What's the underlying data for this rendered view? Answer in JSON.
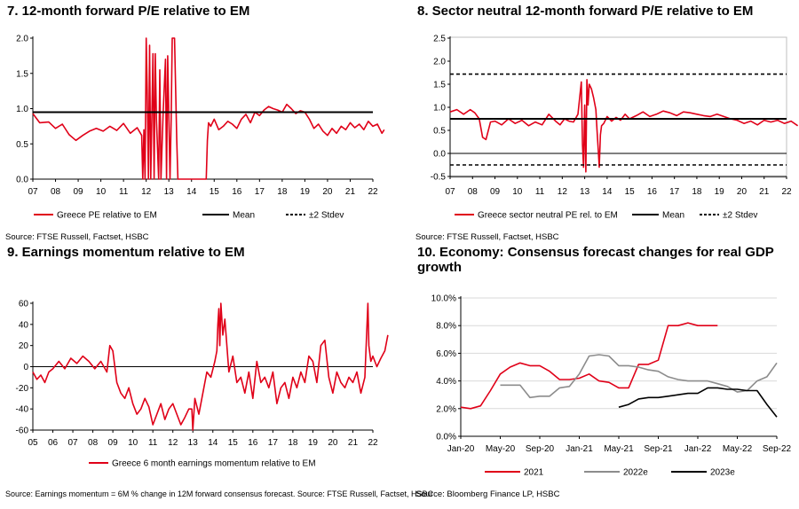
{
  "colors": {
    "red": "#e00018",
    "black": "#000000",
    "grey": "#8c8c8c",
    "grid": "#d9d9d9"
  },
  "panels": [
    {
      "title": "7. 12-month forward P/E relative to EM",
      "source": "Source: FTSE Russell, Factset, HSBC"
    },
    {
      "title": "8. Sector neutral 12-month forward P/E relative to EM",
      "source": "Source: FTSE Russell, Factset, HSBC"
    },
    {
      "title": "9. Earnings momentum relative to EM",
      "source": "Source: Earnings momentum = 6M % change in 12M forward consensus forecast. Source: FTSE Russell, Factset, HSBC"
    },
    {
      "title": "10. Economy: Consensus forecast changes for real GDP growth",
      "source": "Source: Bloomberg Finance LP, HSBC"
    }
  ],
  "chart_data": [
    {
      "type": "line",
      "title": "7. 12-month forward P/E relative to EM",
      "x_ticks": [
        "07",
        "08",
        "09",
        "10",
        "11",
        "12",
        "13",
        "14",
        "15",
        "16",
        "17",
        "18",
        "19",
        "20",
        "21",
        "22"
      ],
      "x_range": [
        2007,
        2022
      ],
      "y_ticks": [
        "0.0",
        "0.5",
        "1.0",
        "1.5",
        "2.0"
      ],
      "ylim": [
        0,
        2.0
      ],
      "series": [
        {
          "name": "Greece PE relative to EM",
          "style": "red",
          "x": [
            2007,
            2007.3,
            2007.7,
            2008,
            2008.3,
            2008.6,
            2008.9,
            2009.2,
            2009.5,
            2009.8,
            2010.1,
            2010.4,
            2010.7,
            2011.0,
            2011.3,
            2011.6,
            2011.8,
            2011.85,
            2011.9,
            2011.95,
            2012.0,
            2012.05,
            2012.1,
            2012.15,
            2012.2,
            2012.3,
            2012.35,
            2012.4,
            2012.45,
            2012.55,
            2012.6,
            2012.65,
            2012.75,
            2012.85,
            2012.9,
            2012.95,
            2013.05,
            2013.1,
            2013.15,
            2013.25,
            2013.35,
            2013.4,
            2013.5,
            2013.6,
            2013.7,
            2013.8,
            2013.9,
            2014.0,
            2014.2,
            2014.5,
            2014.65,
            2014.7,
            2014.75,
            2014.85,
            2015.0,
            2015.2,
            2015.4,
            2015.6,
            2015.8,
            2016.0,
            2016.2,
            2016.4,
            2016.6,
            2016.8,
            2017.0,
            2017.2,
            2017.4,
            2017.6,
            2017.8,
            2018.0,
            2018.2,
            2018.4,
            2018.6,
            2018.8,
            2019.0,
            2019.2,
            2019.4,
            2019.6,
            2019.8,
            2020.0,
            2020.2,
            2020.4,
            2020.6,
            2020.8,
            2021.0,
            2021.2,
            2021.4,
            2021.6,
            2021.8,
            2022.0,
            2022.2,
            2022.4,
            2022.5
          ],
          "y": [
            0.93,
            0.8,
            0.81,
            0.72,
            0.78,
            0.63,
            0.55,
            0.62,
            0.68,
            0.72,
            0.68,
            0.75,
            0.69,
            0.79,
            0.65,
            0.73,
            0.62,
            0.0,
            0.7,
            0.0,
            2.0,
            1.2,
            0.0,
            1.9,
            0.0,
            1.78,
            0.0,
            1.78,
            0.85,
            0.0,
            1.55,
            0.0,
            0.95,
            1.7,
            0.0,
            1.75,
            0.0,
            0.85,
            2.0,
            2.0,
            0.55,
            0.0,
            0.0,
            0.0,
            0.0,
            0.0,
            0.0,
            0.0,
            0.0,
            0.0,
            0.0,
            0.55,
            0.8,
            0.75,
            0.85,
            0.7,
            0.75,
            0.82,
            0.78,
            0.72,
            0.85,
            0.92,
            0.8,
            0.95,
            0.9,
            0.98,
            1.03,
            1.0,
            0.98,
            0.95,
            1.06,
            1.0,
            0.93,
            0.97,
            0.95,
            0.85,
            0.72,
            0.78,
            0.68,
            0.62,
            0.72,
            0.65,
            0.75,
            0.7,
            0.8,
            0.73,
            0.78,
            0.7,
            0.82,
            0.75,
            0.78,
            0.65,
            0.7
          ]
        },
        {
          "name": "Mean",
          "style": "black",
          "constant": 0.95
        },
        {
          "name": "±2 Stdev",
          "style": "dashed",
          "constant": null
        }
      ]
    },
    {
      "type": "line",
      "title": "8. Sector neutral 12-month forward P/E relative to EM",
      "x_ticks": [
        "07",
        "08",
        "09",
        "10",
        "11",
        "12",
        "13",
        "14",
        "15",
        "16",
        "17",
        "18",
        "19",
        "20",
        "21",
        "22"
      ],
      "x_range": [
        2007,
        2022
      ],
      "y_ticks": [
        "-0.5",
        "0.0",
        "0.5",
        "1.0",
        "1.5",
        "2.0",
        "2.5"
      ],
      "ylim": [
        -0.5,
        2.5
      ],
      "series": [
        {
          "name": "Greece sector neutral PE rel. to EM",
          "style": "red",
          "x": [
            2007,
            2007.3,
            2007.6,
            2007.9,
            2008.1,
            2008.3,
            2008.45,
            2008.6,
            2008.8,
            2009.0,
            2009.3,
            2009.6,
            2009.9,
            2010.2,
            2010.5,
            2010.8,
            2011.1,
            2011.4,
            2011.7,
            2011.9,
            2012.1,
            2012.3,
            2012.5,
            2012.7,
            2012.85,
            2012.9,
            2012.95,
            2013.0,
            2013.05,
            2013.1,
            2013.15,
            2013.2,
            2013.3,
            2013.4,
            2013.5,
            2013.55,
            2013.6,
            2013.65,
            2013.7,
            2013.75,
            2013.85,
            2014.0,
            2014.2,
            2014.4,
            2014.6,
            2014.8,
            2015.0,
            2015.3,
            2015.6,
            2015.9,
            2016.2,
            2016.5,
            2016.8,
            2017.1,
            2017.4,
            2017.7,
            2018.0,
            2018.3,
            2018.6,
            2018.9,
            2019.2,
            2019.5,
            2019.8,
            2020.1,
            2020.4,
            2020.7,
            2021.0,
            2021.3,
            2021.6,
            2021.9,
            2022.2,
            2022.5
          ],
          "y": [
            0.9,
            0.95,
            0.85,
            0.95,
            0.88,
            0.75,
            0.35,
            0.3,
            0.68,
            0.7,
            0.62,
            0.75,
            0.65,
            0.72,
            0.6,
            0.68,
            0.62,
            0.85,
            0.7,
            0.62,
            0.75,
            0.7,
            0.68,
            0.85,
            1.55,
            0.2,
            -0.3,
            1.05,
            -0.4,
            1.6,
            1.05,
            1.5,
            1.4,
            1.2,
            0.95,
            0.5,
            0.1,
            -0.3,
            0.4,
            0.6,
            0.65,
            0.8,
            0.7,
            0.78,
            0.72,
            0.85,
            0.75,
            0.82,
            0.9,
            0.8,
            0.85,
            0.92,
            0.88,
            0.82,
            0.9,
            0.88,
            0.85,
            0.82,
            0.8,
            0.85,
            0.8,
            0.75,
            0.72,
            0.65,
            0.7,
            0.62,
            0.72,
            0.68,
            0.72,
            0.65,
            0.7,
            0.6
          ]
        },
        {
          "name": "Mean",
          "style": "black",
          "constant": 0.75
        },
        {
          "name": "±2 Stdev",
          "style": "dashed",
          "constants": [
            1.72,
            -0.25
          ]
        }
      ]
    },
    {
      "type": "line",
      "title": "9. Earnings momentum relative to EM",
      "x_ticks": [
        "05",
        "06",
        "07",
        "08",
        "09",
        "10",
        "11",
        "12",
        "13",
        "14",
        "15",
        "16",
        "17",
        "18",
        "19",
        "20",
        "21",
        "22"
      ],
      "x_range": [
        2005,
        2022
      ],
      "y_ticks": [
        "-60",
        "-40",
        "-20",
        "0",
        "20",
        "40",
        "60"
      ],
      "ylim": [
        -60,
        60
      ],
      "series": [
        {
          "name": "Greece 6 month earnings momentum relative to EM",
          "style": "red",
          "x": [
            2005,
            2005.2,
            2005.4,
            2005.6,
            2005.8,
            2006.0,
            2006.3,
            2006.6,
            2006.9,
            2007.2,
            2007.5,
            2007.8,
            2008.1,
            2008.4,
            2008.7,
            2008.85,
            2009.0,
            2009.2,
            2009.4,
            2009.6,
            2009.8,
            2010.0,
            2010.2,
            2010.4,
            2010.6,
            2010.8,
            2011.0,
            2011.2,
            2011.4,
            2011.6,
            2011.8,
            2012.0,
            2012.2,
            2012.4,
            2012.6,
            2012.8,
            2012.95,
            2013.0,
            2013.1,
            2013.3,
            2013.5,
            2013.7,
            2013.9,
            2014.1,
            2014.2,
            2014.25,
            2014.3,
            2014.35,
            2014.4,
            2014.5,
            2014.6,
            2014.8,
            2015.0,
            2015.2,
            2015.4,
            2015.6,
            2015.8,
            2016.0,
            2016.2,
            2016.4,
            2016.6,
            2016.8,
            2017.0,
            2017.2,
            2017.4,
            2017.6,
            2017.8,
            2018.0,
            2018.2,
            2018.4,
            2018.6,
            2018.8,
            2019.0,
            2019.2,
            2019.4,
            2019.6,
            2019.8,
            2020.0,
            2020.2,
            2020.4,
            2020.6,
            2020.8,
            2021.0,
            2021.2,
            2021.4,
            2021.6,
            2021.75,
            2021.8,
            2021.9,
            2022.0,
            2022.2,
            2022.4,
            2022.6,
            2022.75
          ],
          "y": [
            -5,
            -12,
            -8,
            -15,
            -5,
            -2,
            5,
            -2,
            8,
            3,
            10,
            5,
            -2,
            5,
            -5,
            20,
            15,
            -15,
            -25,
            -30,
            -20,
            -35,
            -45,
            -40,
            -30,
            -38,
            -55,
            -45,
            -35,
            -50,
            -40,
            -35,
            -45,
            -55,
            -48,
            -40,
            -40,
            -60,
            -30,
            -45,
            -25,
            -5,
            -10,
            5,
            15,
            40,
            55,
            20,
            60,
            30,
            45,
            -5,
            10,
            -15,
            -10,
            -25,
            -5,
            -30,
            5,
            -15,
            -10,
            -20,
            -5,
            -35,
            -20,
            -15,
            -30,
            -10,
            -20,
            -5,
            -15,
            10,
            5,
            -15,
            20,
            25,
            -10,
            -25,
            -5,
            -15,
            -20,
            -10,
            -15,
            -5,
            -25,
            -10,
            60,
            20,
            5,
            10,
            0,
            8,
            15,
            30
          ]
        }
      ]
    },
    {
      "type": "line",
      "title": "10. Economy: Consensus forecast changes for real GDP growth",
      "x_ticks": [
        "Jan-20",
        "May-20",
        "Sep-20",
        "Jan-21",
        "May-21",
        "Sep-21",
        "Jan-22",
        "May-22",
        "Sep-22"
      ],
      "x_range": [
        0,
        32
      ],
      "y_ticks": [
        "0.0%",
        "2.0%",
        "4.0%",
        "6.0%",
        "8.0%",
        "10.0%"
      ],
      "ylim": [
        0,
        10
      ],
      "series": [
        {
          "name": "2021",
          "style": "red",
          "x": [
            0,
            1,
            2,
            3,
            4,
            5,
            6,
            7,
            8,
            9,
            10,
            11,
            12,
            13,
            14,
            15,
            16,
            17,
            18,
            19,
            20,
            21,
            22,
            23,
            24,
            25,
            26
          ],
          "y": [
            2.1,
            2.0,
            2.2,
            3.3,
            4.5,
            5.0,
            5.3,
            5.1,
            5.1,
            4.7,
            4.1,
            4.1,
            4.2,
            4.5,
            4.0,
            3.9,
            3.5,
            3.5,
            5.2,
            5.2,
            5.5,
            8.0,
            8.0,
            8.2,
            8.0,
            8.0,
            8.0
          ]
        },
        {
          "name": "2022e",
          "style": "grey",
          "x": [
            4,
            5,
            6,
            7,
            8,
            9,
            10,
            11,
            12,
            13,
            14,
            15,
            16,
            17,
            18,
            19,
            20,
            21,
            22,
            23,
            24,
            25,
            26,
            27,
            28,
            29,
            30,
            31,
            32
          ],
          "y": [
            3.7,
            3.7,
            3.7,
            2.8,
            2.9,
            2.9,
            3.5,
            3.6,
            4.5,
            5.8,
            5.9,
            5.8,
            5.1,
            5.1,
            5.0,
            4.8,
            4.7,
            4.3,
            4.1,
            4.0,
            4.0,
            4.0,
            3.8,
            3.6,
            3.2,
            3.3,
            4.0,
            4.3,
            5.3
          ]
        },
        {
          "name": "2023e",
          "style": "black",
          "x": [
            16,
            17,
            18,
            19,
            20,
            21,
            22,
            23,
            24,
            25,
            26,
            27,
            28,
            29,
            30,
            31,
            32
          ],
          "y": [
            2.1,
            2.3,
            2.7,
            2.8,
            2.8,
            2.9,
            3.0,
            3.1,
            3.1,
            3.5,
            3.5,
            3.4,
            3.4,
            3.3,
            3.3,
            2.3,
            1.4
          ]
        }
      ]
    }
  ]
}
